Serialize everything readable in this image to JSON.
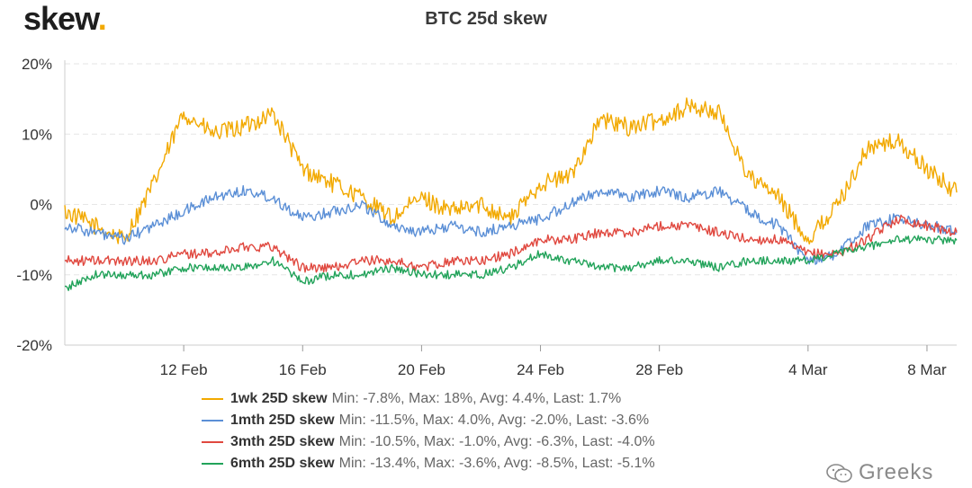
{
  "header": {
    "logo_text": "skew",
    "logo_dot": ".",
    "title": "BTC 25d skew"
  },
  "colors": {
    "logo_accent": "#f2a900",
    "grid": "#e6e6e6",
    "axis": "#cccccc"
  },
  "watermark": {
    "text": "Greeks",
    "icon": "wechat-icon"
  },
  "chart_data": {
    "type": "line",
    "title": "BTC 25d skew",
    "xlabel": "",
    "ylabel": "",
    "x_start": "2020-02-08",
    "x_end": "2020-03-09",
    "ylim": [
      -20,
      20
    ],
    "y_ticks": [
      "20%",
      "10%",
      "0%",
      "-10%",
      "-20%"
    ],
    "x_ticks": [
      "12 Feb",
      "16 Feb",
      "20 Feb",
      "24 Feb",
      "28 Feb",
      "4 Mar",
      "8 Mar"
    ],
    "grid": "horizontal dashed",
    "legend_position": "bottom",
    "x": [
      "2020-02-08",
      "2020-02-09",
      "2020-02-10",
      "2020-02-11",
      "2020-02-12",
      "2020-02-13",
      "2020-02-14",
      "2020-02-15",
      "2020-02-16",
      "2020-02-17",
      "2020-02-18",
      "2020-02-19",
      "2020-02-20",
      "2020-02-21",
      "2020-02-22",
      "2020-02-23",
      "2020-02-24",
      "2020-02-25",
      "2020-02-26",
      "2020-02-27",
      "2020-02-28",
      "2020-02-29",
      "2020-03-01",
      "2020-03-02",
      "2020-03-03",
      "2020-03-04",
      "2020-03-05",
      "2020-03-06",
      "2020-03-07",
      "2020-03-08",
      "2020-03-09"
    ],
    "series": [
      {
        "name": "1wk 25D skew",
        "color": "#f2a900",
        "stats": "Min: -7.8%, Max: 18%, Avg: 4.4%, Last: 1.7%",
        "values": [
          -1,
          -3,
          -5,
          3,
          13,
          10,
          11,
          13,
          5,
          3,
          1,
          -2,
          1,
          -1,
          0,
          -2,
          3,
          4,
          12,
          11,
          12,
          14,
          13,
          4,
          1,
          -5,
          0,
          8,
          9,
          5,
          1.7
        ]
      },
      {
        "name": "1mth 25D skew",
        "color": "#5b8fd6",
        "stats": "Min: -11.5%, Max: 4.0%, Avg: -2.0%, Last: -3.6%",
        "values": [
          -3,
          -4,
          -5,
          -3,
          -1,
          1,
          2,
          1,
          -2,
          -1,
          0,
          -3,
          -4,
          -3,
          -4,
          -3,
          -2,
          0,
          2,
          1,
          2,
          1,
          2,
          -1,
          -3,
          -8,
          -7,
          -3,
          -2,
          -3,
          -3.6
        ]
      },
      {
        "name": "3mth 25D skew",
        "color": "#e0483f",
        "stats": "Min: -10.5%, Max: -1.0%, Avg: -6.3%, Last: -4.0%",
        "values": [
          -8,
          -8,
          -8,
          -8,
          -7,
          -7,
          -6,
          -6,
          -9,
          -9,
          -8,
          -8,
          -9,
          -8,
          -8,
          -7,
          -5,
          -5,
          -4,
          -4,
          -3,
          -3,
          -4,
          -5,
          -5,
          -7,
          -7,
          -5,
          -2,
          -3,
          -4.0
        ]
      },
      {
        "name": "6mth 25D skew",
        "color": "#22a35a",
        "stats": "Min: -13.4%, Max: -3.6%, Avg: -8.5%, Last: -5.1%",
        "values": [
          -12,
          -10,
          -10,
          -10,
          -9,
          -9,
          -9,
          -8,
          -11,
          -10,
          -10,
          -9,
          -10,
          -10,
          -10,
          -9,
          -7,
          -8,
          -9,
          -9,
          -8,
          -8,
          -9,
          -8,
          -8,
          -8,
          -7,
          -6,
          -5,
          -5,
          -5.1
        ]
      }
    ]
  }
}
